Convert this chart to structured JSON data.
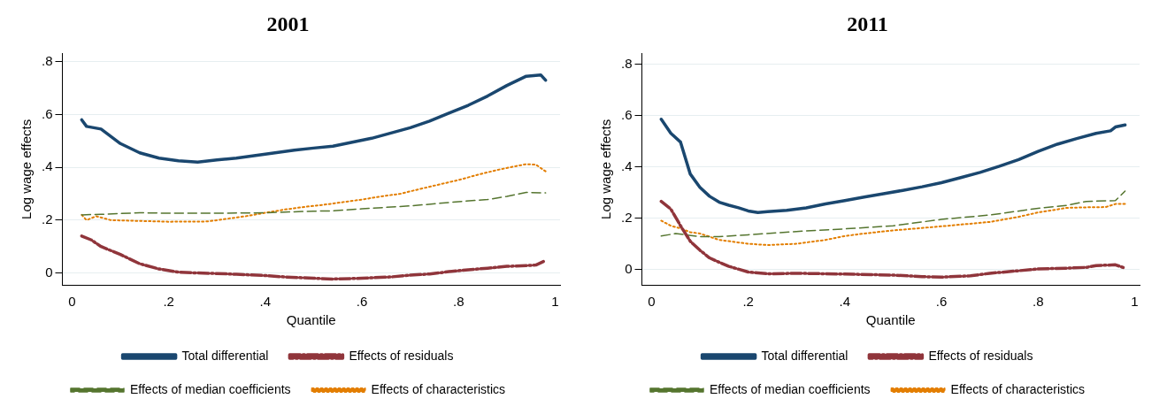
{
  "chart_data": [
    {
      "type": "line",
      "title": "2001",
      "xlabel": "Quantile",
      "ylabel": "Log wage effects",
      "xlim": [
        -0.02,
        1.01
      ],
      "ylim": [
        -0.045,
        0.83
      ],
      "xticks": [
        {
          "value": 0,
          "label": "0"
        },
        {
          "value": 0.2,
          "label": ".2"
        },
        {
          "value": 0.4,
          "label": ".4"
        },
        {
          "value": 0.6,
          "label": ".6"
        },
        {
          "value": 0.8,
          "label": ".8"
        },
        {
          "value": 1,
          "label": "1"
        }
      ],
      "yticks": [
        {
          "value": 0,
          "label": "0"
        },
        {
          "value": 0.2,
          "label": ".2"
        },
        {
          "value": 0.4,
          "label": ".4"
        },
        {
          "value": 0.6,
          "label": ".6"
        },
        {
          "value": 0.8,
          "label": ".8"
        }
      ],
      "grid": "y",
      "legend": "bottom",
      "marker": "none",
      "series": [
        {
          "name": "Total differential",
          "color": "#1a476f",
          "line_style": "solid",
          "x": [
            0.02,
            0.03,
            0.06,
            0.1,
            0.14,
            0.18,
            0.22,
            0.26,
            0.3,
            0.34,
            0.38,
            0.42,
            0.46,
            0.5,
            0.54,
            0.58,
            0.62,
            0.66,
            0.7,
            0.74,
            0.78,
            0.82,
            0.86,
            0.9,
            0.94,
            0.97,
            0.98
          ],
          "values": [
            0.58,
            0.555,
            0.545,
            0.49,
            0.455,
            0.435,
            0.425,
            0.42,
            0.428,
            0.435,
            0.445,
            0.455,
            0.465,
            0.473,
            0.48,
            0.495,
            0.51,
            0.53,
            0.55,
            0.575,
            0.605,
            0.635,
            0.67,
            0.71,
            0.745,
            0.75,
            0.73
          ]
        },
        {
          "name": "Effects of residuals",
          "color": "#90353b",
          "line_style": "dashed",
          "x": [
            0.02,
            0.04,
            0.06,
            0.1,
            0.14,
            0.18,
            0.22,
            0.26,
            0.3,
            0.34,
            0.4,
            0.44,
            0.5,
            0.54,
            0.6,
            0.66,
            0.7,
            0.74,
            0.78,
            0.82,
            0.86,
            0.9,
            0.94,
            0.96,
            0.98
          ],
          "values": [
            0.14,
            0.125,
            0.1,
            0.07,
            0.035,
            0.015,
            0.003,
            0,
            -0.002,
            -0.005,
            -0.01,
            -0.015,
            -0.02,
            -0.023,
            -0.02,
            -0.015,
            -0.008,
            -0.004,
            0.005,
            0.012,
            0.018,
            0.025,
            0.028,
            0.03,
            0.047
          ]
        },
        {
          "name": "Effects of median coefficients",
          "color": "#55752f",
          "line_style": "dashed",
          "x": [
            0.02,
            0.06,
            0.1,
            0.14,
            0.2,
            0.3,
            0.4,
            0.5,
            0.54,
            0.6,
            0.7,
            0.8,
            0.86,
            0.9,
            0.94,
            0.98
          ],
          "values": [
            0.22,
            0.222,
            0.225,
            0.228,
            0.226,
            0.226,
            0.228,
            0.234,
            0.235,
            0.243,
            0.254,
            0.27,
            0.278,
            0.29,
            0.305,
            0.303
          ]
        },
        {
          "name": "Effects of characteristics",
          "color": "#e37e00",
          "line_style": "dotted",
          "x": [
            0.02,
            0.03,
            0.05,
            0.08,
            0.12,
            0.2,
            0.28,
            0.32,
            0.36,
            0.4,
            0.44,
            0.48,
            0.52,
            0.56,
            0.6,
            0.64,
            0.68,
            0.72,
            0.76,
            0.8,
            0.84,
            0.88,
            0.92,
            0.94,
            0.96,
            0.98
          ],
          "values": [
            0.22,
            0.2,
            0.215,
            0.2,
            0.198,
            0.194,
            0.195,
            0.205,
            0.215,
            0.228,
            0.24,
            0.25,
            0.258,
            0.268,
            0.278,
            0.29,
            0.3,
            0.318,
            0.335,
            0.352,
            0.372,
            0.39,
            0.405,
            0.412,
            0.41,
            0.385
          ]
        }
      ]
    },
    {
      "type": "line",
      "title": "2011",
      "xlabel": "Quantile",
      "ylabel": "Log wage effects",
      "xlim": [
        -0.02,
        1.01
      ],
      "ylim": [
        -0.06,
        0.84
      ],
      "xticks": [
        {
          "value": 0,
          "label": "0"
        },
        {
          "value": 0.2,
          "label": ".2"
        },
        {
          "value": 0.4,
          "label": ".4"
        },
        {
          "value": 0.6,
          "label": ".6"
        },
        {
          "value": 0.8,
          "label": ".8"
        },
        {
          "value": 1,
          "label": "1"
        }
      ],
      "yticks": [
        {
          "value": 0,
          "label": "0"
        },
        {
          "value": 0.2,
          "label": ".2"
        },
        {
          "value": 0.4,
          "label": ".4"
        },
        {
          "value": 0.6,
          "label": ".6"
        },
        {
          "value": 0.8,
          "label": ".8"
        }
      ],
      "grid": "y",
      "legend": "bottom",
      "marker": "none",
      "series": [
        {
          "name": "Total differential",
          "color": "#1a476f",
          "line_style": "solid",
          "x": [
            0.02,
            0.04,
            0.06,
            0.08,
            0.1,
            0.12,
            0.14,
            0.16,
            0.18,
            0.2,
            0.22,
            0.24,
            0.28,
            0.32,
            0.36,
            0.4,
            0.44,
            0.48,
            0.52,
            0.56,
            0.6,
            0.64,
            0.68,
            0.72,
            0.76,
            0.8,
            0.84,
            0.88,
            0.92,
            0.95,
            0.96,
            0.98
          ],
          "values": [
            0.585,
            0.53,
            0.496,
            0.372,
            0.32,
            0.285,
            0.262,
            0.25,
            0.24,
            0.228,
            0.222,
            0.225,
            0.23,
            0.24,
            0.255,
            0.268,
            0.282,
            0.295,
            0.308,
            0.322,
            0.338,
            0.358,
            0.378,
            0.402,
            0.428,
            0.46,
            0.488,
            0.51,
            0.53,
            0.54,
            0.555,
            0.563
          ]
        },
        {
          "name": "Effects of residuals",
          "color": "#90353b",
          "line_style": "dashed",
          "x": [
            0.02,
            0.04,
            0.06,
            0.08,
            0.1,
            0.12,
            0.14,
            0.16,
            0.2,
            0.24,
            0.3,
            0.4,
            0.5,
            0.56,
            0.6,
            0.66,
            0.7,
            0.76,
            0.8,
            0.86,
            0.9,
            0.92,
            0.96,
            0.98
          ],
          "values": [
            0.265,
            0.235,
            0.17,
            0.11,
            0.075,
            0.045,
            0.028,
            0.012,
            -0.01,
            -0.017,
            -0.015,
            -0.018,
            -0.022,
            -0.028,
            -0.03,
            -0.025,
            -0.015,
            -0.005,
            0.002,
            0.005,
            0.008,
            0.015,
            0.018,
            0.005
          ]
        },
        {
          "name": "Effects of median coefficients",
          "color": "#55752f",
          "line_style": "dashed",
          "x": [
            0.02,
            0.05,
            0.1,
            0.14,
            0.2,
            0.3,
            0.4,
            0.5,
            0.6,
            0.7,
            0.8,
            0.86,
            0.9,
            0.96,
            0.98
          ],
          "values": [
            0.13,
            0.14,
            0.128,
            0.128,
            0.135,
            0.148,
            0.158,
            0.17,
            0.195,
            0.212,
            0.238,
            0.25,
            0.265,
            0.268,
            0.305
          ]
        },
        {
          "name": "Effects of characteristics",
          "color": "#e37e00",
          "line_style": "dotted",
          "x": [
            0.02,
            0.04,
            0.06,
            0.08,
            0.1,
            0.14,
            0.2,
            0.24,
            0.3,
            0.36,
            0.4,
            0.44,
            0.5,
            0.6,
            0.7,
            0.76,
            0.8,
            0.86,
            0.9,
            0.94,
            0.96,
            0.98
          ],
          "values": [
            0.19,
            0.17,
            0.16,
            0.145,
            0.14,
            0.115,
            0.1,
            0.095,
            0.1,
            0.115,
            0.13,
            0.14,
            0.152,
            0.168,
            0.185,
            0.205,
            0.222,
            0.24,
            0.242,
            0.243,
            0.255,
            0.255
          ]
        }
      ]
    }
  ]
}
